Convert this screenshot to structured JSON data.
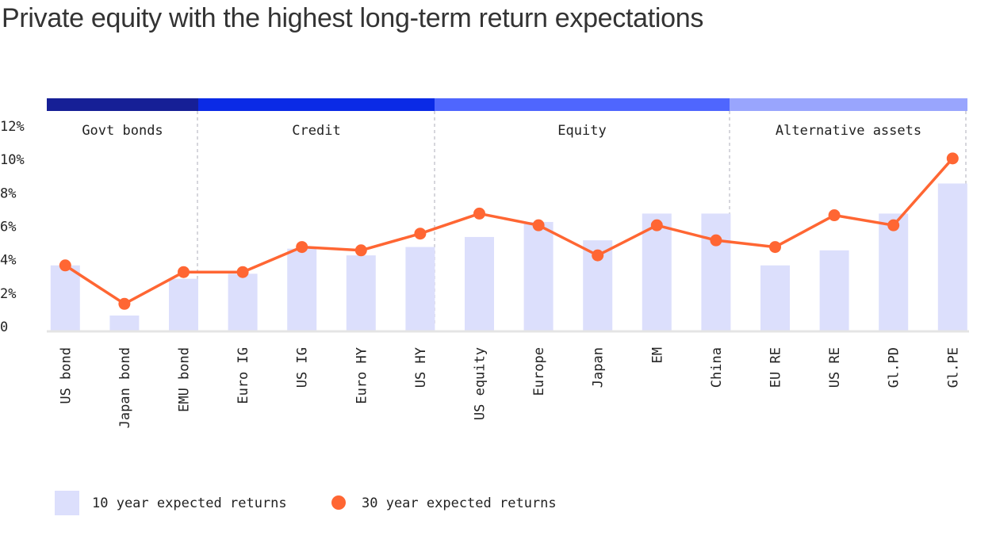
{
  "chart_data": {
    "type": "bar",
    "title": "Private equity with the highest long-term return expectations",
    "categories": [
      "US bond",
      "Japan bond",
      "EMU bond",
      "Euro IG",
      "US IG",
      "Euro HY",
      "US HY",
      "US equity",
      "Europe",
      "Japan",
      "EM",
      "China",
      "EU RE",
      "US RE",
      "Gl.PD",
      "Gl.PE"
    ],
    "groups": [
      {
        "name": "Govt bonds",
        "start": 0,
        "end": 2,
        "color": "#161f96"
      },
      {
        "name": "Credit",
        "start": 3,
        "end": 6,
        "color": "#0a2ae6"
      },
      {
        "name": "Equity",
        "start": 7,
        "end": 11,
        "color": "#4f66fe"
      },
      {
        "name": "Alternative assets",
        "start": 12,
        "end": 15,
        "color": "#99a5fd"
      }
    ],
    "series": [
      {
        "name": "10 year expected returns",
        "type": "bar",
        "color": "#dcdffc",
        "values": [
          3.9,
          0.9,
          3.1,
          3.4,
          4.9,
          4.5,
          5.0,
          5.6,
          6.5,
          5.4,
          7.0,
          7.0,
          3.9,
          4.8,
          7.0,
          8.8
        ]
      },
      {
        "name": "30 year expected returns",
        "type": "line",
        "color": "#ff6633",
        "values": [
          3.9,
          1.6,
          3.5,
          3.5,
          5.0,
          4.8,
          5.8,
          7.0,
          6.3,
          4.5,
          6.3,
          5.4,
          5.0,
          6.9,
          6.3,
          10.3
        ]
      }
    ],
    "yticks": [
      "0",
      "2%",
      "4%",
      "6%",
      "8%",
      "10%",
      "12%"
    ],
    "ylim": [
      0,
      12
    ],
    "grid": false,
    "legend": "bottom-left"
  }
}
